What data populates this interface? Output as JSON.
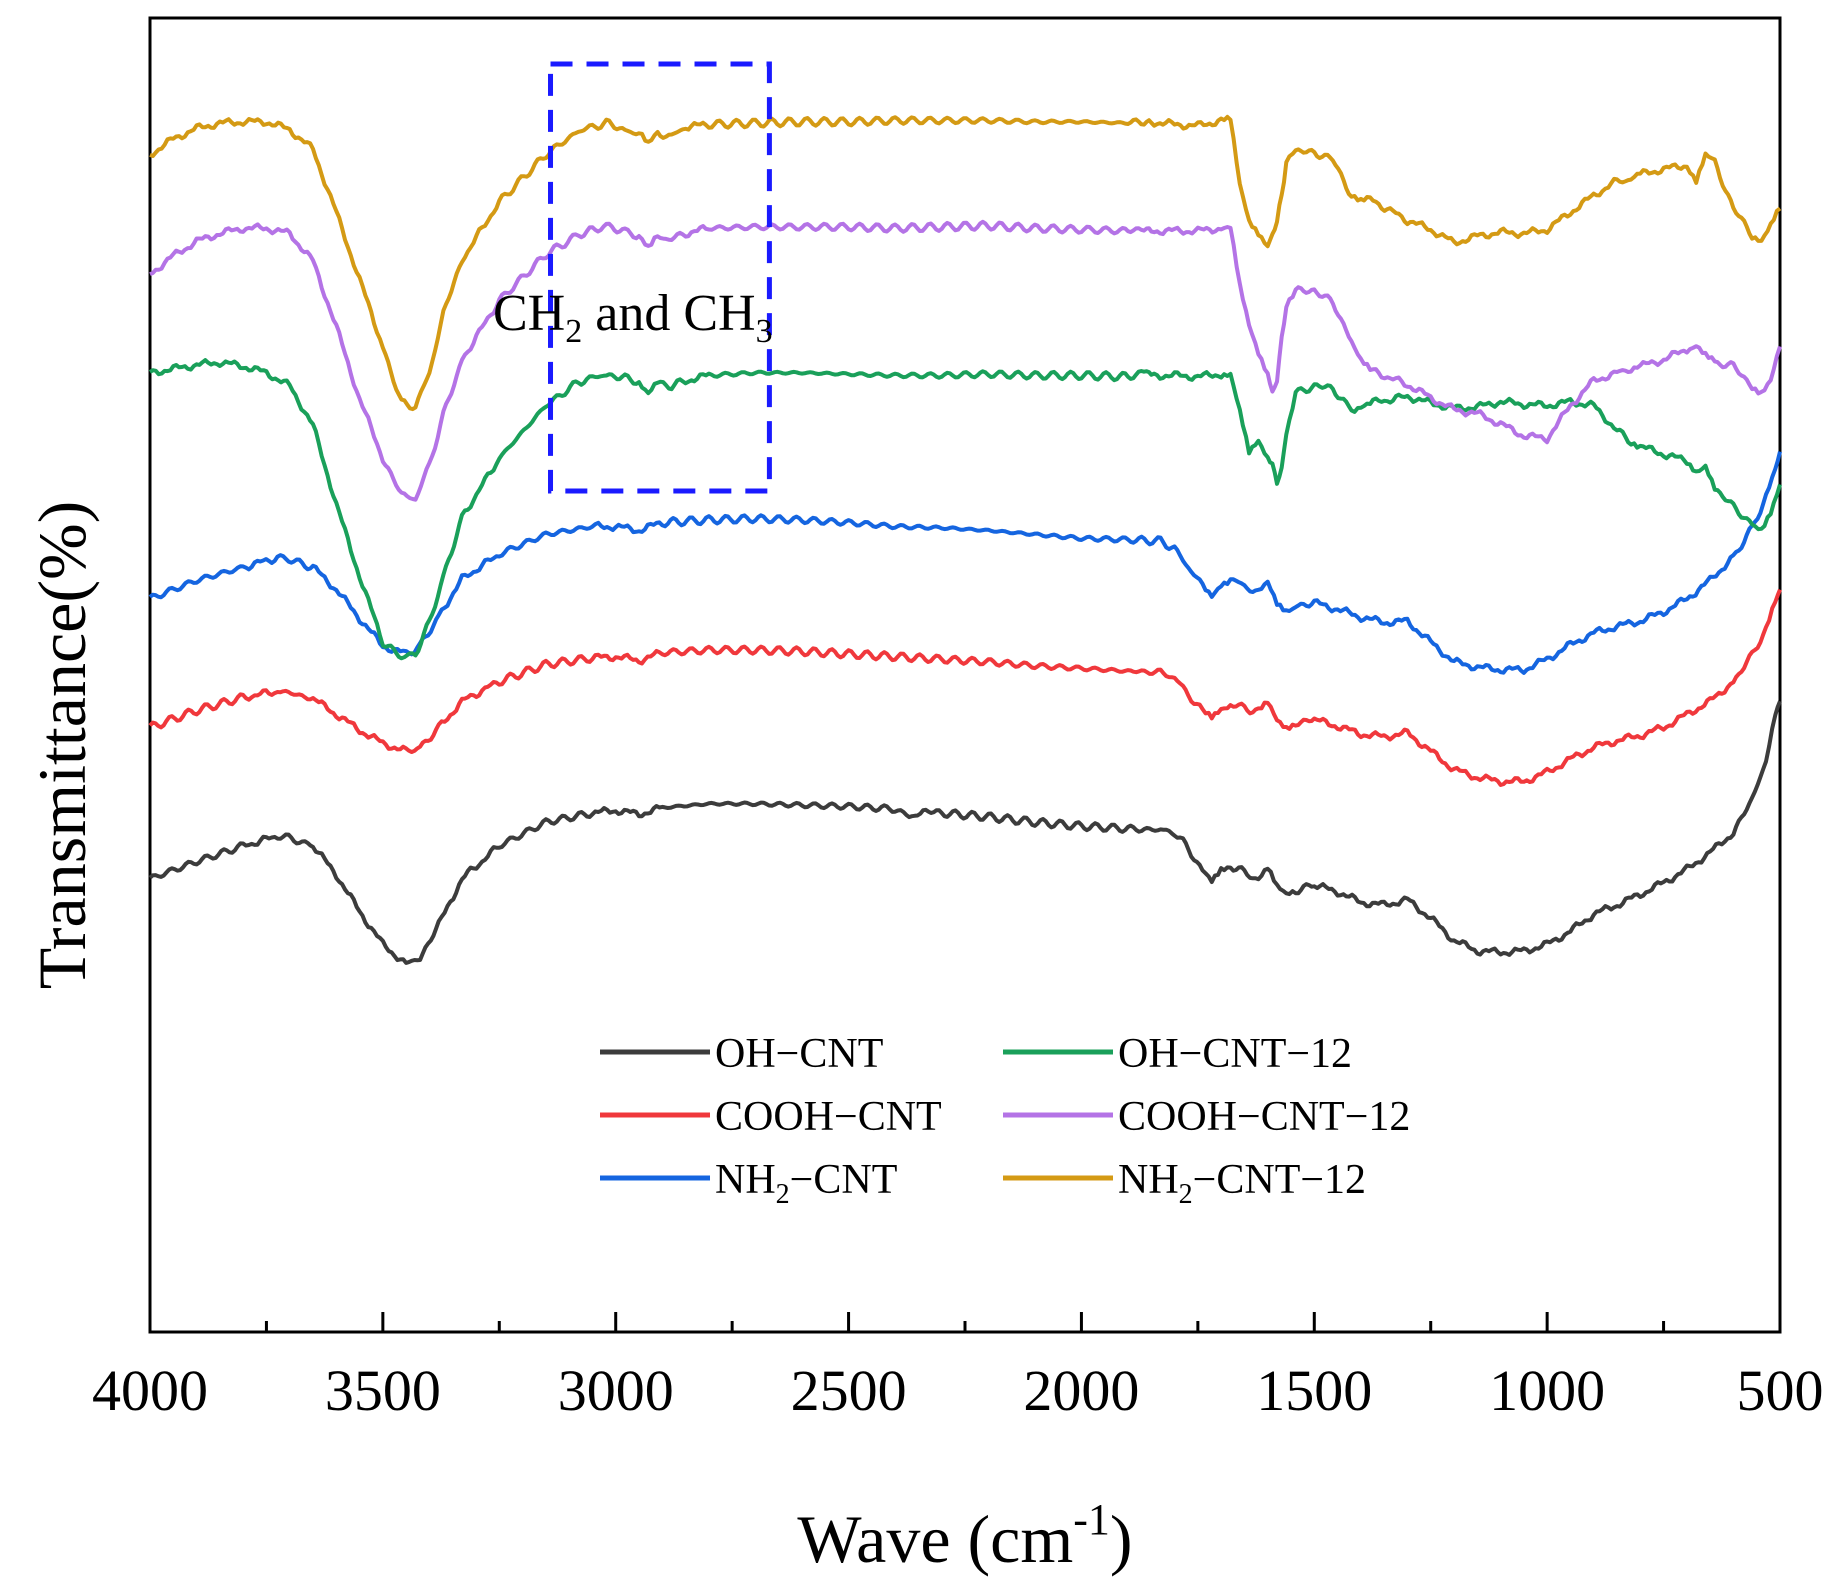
{
  "chart_data": {
    "type": "line",
    "title": "",
    "xlabel": "Wave (cm",
    "xlabel_sup": "-1",
    "xlabel_close": ")",
    "ylabel": "Transmittance(%)",
    "xlim": [
      4000,
      500
    ],
    "x_ticks": [
      4000,
      3500,
      3000,
      2500,
      2000,
      1500,
      1000,
      500
    ],
    "x_tick_labels": [
      "4000",
      "3500",
      "3000",
      "2500",
      "2000",
      "1500",
      "1000",
      "500"
    ],
    "y_ticks_shown": false,
    "ylim": [
      0,
      100
    ],
    "annotation": {
      "text_a": "CH",
      "sub_a": "2",
      "text_mid": " and CH",
      "sub_b": "3",
      "box_x_range": [
        3140,
        2670
      ],
      "box_y_range": [
        64,
        96.5
      ]
    },
    "legend": {
      "placement": "center-bottom",
      "entries": [
        {
          "label": "OH−CNT",
          "color": "#3c3c3c"
        },
        {
          "label": "OH−CNT−12",
          "color": "#1aa05a"
        },
        {
          "label": "COOH−CNT",
          "color": "#f0383c"
        },
        {
          "label": "COOH−CNT−12",
          "color": "#b473e6"
        },
        {
          "label_main": "NH",
          "label_sub": "2",
          "label_rest": "−CNT",
          "color": "#1565e0"
        },
        {
          "label_main": "NH",
          "label_sub": "2",
          "label_rest": "−CNT−12",
          "color": "#d49a14"
        }
      ]
    },
    "series": [
      {
        "name": "OH−CNT",
        "color": "#3c3c3c",
        "x": [
          4000,
          3900,
          3800,
          3720,
          3650,
          3600,
          3550,
          3500,
          3450,
          3420,
          3380,
          3330,
          3250,
          3150,
          3050,
          3000,
          2950,
          2900,
          2800,
          2700,
          2600,
          2500,
          2400,
          2370,
          2340,
          2300,
          2200,
          2100,
          2000,
          1900,
          1830,
          1800,
          1770,
          1740,
          1720,
          1700,
          1680,
          1650,
          1620,
          1600,
          1580,
          1560,
          1540,
          1500,
          1450,
          1400,
          1350,
          1300,
          1250,
          1200,
          1150,
          1100,
          1050,
          1000,
          950,
          900,
          850,
          800,
          750,
          700,
          650,
          600,
          560,
          530,
          510,
          500
        ],
        "y": [
          34.5,
          35.8,
          37,
          37.8,
          37,
          34.8,
          32,
          29.5,
          28,
          28.5,
          31,
          34.5,
          37,
          38.8,
          39.5,
          39.7,
          39.4,
          39.9,
          40.2,
          40.2,
          40.1,
          40,
          39.8,
          39.2,
          39.6,
          39.5,
          39.2,
          38.8,
          38.5,
          38.3,
          38.2,
          38,
          36.8,
          35,
          34.2,
          35.2,
          35.5,
          35,
          34.4,
          35.2,
          33.8,
          33.3,
          33.6,
          34,
          33.5,
          32.7,
          32.5,
          32.9,
          31.5,
          29.8,
          29,
          28.9,
          29,
          29.5,
          30.5,
          31.8,
          32.5,
          33.3,
          34.2,
          35.2,
          36.5,
          38,
          40.5,
          43.5,
          47,
          48
        ]
      },
      {
        "name": "COOH−CNT",
        "color": "#f0383c",
        "x": [
          4000,
          3900,
          3800,
          3720,
          3650,
          3600,
          3550,
          3500,
          3450,
          3420,
          3380,
          3330,
          3250,
          3150,
          3050,
          3000,
          2950,
          2900,
          2800,
          2700,
          2600,
          2500,
          2400,
          2300,
          2200,
          2100,
          2000,
          1900,
          1830,
          1800,
          1770,
          1740,
          1720,
          1700,
          1680,
          1650,
          1620,
          1600,
          1580,
          1560,
          1540,
          1500,
          1450,
          1400,
          1350,
          1300,
          1250,
          1200,
          1150,
          1100,
          1050,
          1000,
          950,
          900,
          850,
          800,
          750,
          700,
          650,
          600,
          560,
          530,
          510,
          500
        ],
        "y": [
          46,
          47.3,
          48.3,
          48.8,
          48.2,
          47,
          45.8,
          44.8,
          44.2,
          44.5,
          46,
          48,
          49.5,
          50.8,
          51.3,
          51.4,
          51.1,
          51.7,
          51.9,
          51.9,
          51.8,
          51.6,
          51.4,
          51.2,
          51,
          50.7,
          50.5,
          50.3,
          50.2,
          49.8,
          48.5,
          47.2,
          46.8,
          47.5,
          47.8,
          47.5,
          47.2,
          47.8,
          46.5,
          46,
          46.4,
          46.6,
          46.1,
          45.5,
          45.3,
          45.6,
          44.2,
          42.8,
          42.2,
          41.9,
          41.9,
          42.6,
          43.6,
          44.5,
          45,
          45.4,
          46,
          47,
          48,
          49.5,
          51.5,
          53.5,
          55.5,
          56.5
        ]
      },
      {
        "name": "NH2−CNT",
        "color": "#1565e0",
        "x": [
          4000,
          3900,
          3800,
          3720,
          3650,
          3600,
          3550,
          3500,
          3450,
          3420,
          3380,
          3330,
          3250,
          3150,
          3050,
          3000,
          2950,
          2900,
          2800,
          2700,
          2600,
          2500,
          2400,
          2300,
          2200,
          2100,
          2000,
          1900,
          1830,
          1800,
          1770,
          1740,
          1720,
          1700,
          1680,
          1650,
          1620,
          1600,
          1580,
          1560,
          1540,
          1500,
          1450,
          1400,
          1350,
          1300,
          1250,
          1200,
          1150,
          1100,
          1050,
          1000,
          950,
          900,
          850,
          800,
          750,
          700,
          650,
          600,
          560,
          530,
          510,
          500
        ],
        "y": [
          55.8,
          57.2,
          58.2,
          59,
          58.2,
          56.5,
          54.3,
          52.2,
          51.6,
          52.2,
          54.5,
          57.3,
          59.2,
          60.7,
          61.3,
          61.3,
          61,
          61.6,
          61.8,
          61.9,
          61.8,
          61.6,
          61.3,
          61.2,
          61,
          60.7,
          60.4,
          60.3,
          60.2,
          59.6,
          58.2,
          56.8,
          56.1,
          57,
          57.3,
          56.8,
          56.2,
          57,
          55.5,
          55,
          55.3,
          55.5,
          55,
          54.4,
          54,
          54.1,
          52.5,
          51,
          50.6,
          50.4,
          50.4,
          51.2,
          52.3,
          53.2,
          53.7,
          54.1,
          54.8,
          55.8,
          57.2,
          59,
          61.2,
          63.5,
          65.5,
          67
        ]
      },
      {
        "name": "OH−CNT−12",
        "color": "#1aa05a",
        "x": [
          4000,
          3950,
          3900,
          3850,
          3800,
          3750,
          3700,
          3650,
          3600,
          3550,
          3500,
          3460,
          3430,
          3400,
          3370,
          3330,
          3250,
          3150,
          3080,
          3020,
          2980,
          2950,
          2930,
          2910,
          2880,
          2850,
          2800,
          2700,
          2600,
          2500,
          2400,
          2300,
          2200,
          2100,
          2000,
          1900,
          1860,
          1850,
          1800,
          1750,
          1700,
          1680,
          1660,
          1640,
          1620,
          1600,
          1590,
          1580,
          1570,
          1560,
          1540,
          1500,
          1460,
          1420,
          1400,
          1380,
          1300,
          1250,
          1200,
          1150,
          1100,
          1050,
          1000,
          950,
          900,
          850,
          820,
          800,
          750,
          700,
          680,
          660,
          640,
          600,
          560,
          540,
          520,
          500
        ],
        "y": [
          73,
          73.3,
          73.6,
          73.8,
          73.5,
          73,
          72,
          69,
          63,
          57.5,
          52.5,
          51.3,
          51.6,
          54,
          57.5,
          62,
          66.5,
          70.5,
          72.3,
          72.9,
          72.6,
          72.3,
          71.4,
          72.2,
          72,
          72.4,
          72.8,
          73,
          73,
          72.9,
          72.8,
          72.8,
          72.9,
          72.8,
          72.8,
          72.7,
          73.2,
          72.8,
          72.8,
          72.7,
          72.9,
          72.9,
          70,
          66.8,
          67.7,
          66.5,
          66,
          64.8,
          65.5,
          68.5,
          71.5,
          72,
          71.8,
          70.2,
          70.5,
          70.7,
          71.2,
          70.7,
          70.3,
          70.4,
          70.8,
          70.6,
          70.5,
          70.8,
          70.5,
          68.6,
          67.8,
          67.4,
          66.8,
          66.3,
          65.6,
          66,
          64.2,
          62.8,
          61.5,
          61.2,
          62.5,
          64.5
        ]
      },
      {
        "name": "COOH−CNT−12",
        "color": "#b473e6",
        "x": [
          4000,
          3950,
          3900,
          3850,
          3800,
          3750,
          3700,
          3650,
          3600,
          3550,
          3500,
          3460,
          3430,
          3400,
          3370,
          3330,
          3250,
          3150,
          3080,
          3020,
          2980,
          2950,
          2930,
          2910,
          2880,
          2850,
          2800,
          2700,
          2600,
          2500,
          2400,
          2300,
          2200,
          2100,
          2000,
          1900,
          1860,
          1850,
          1800,
          1750,
          1700,
          1680,
          1660,
          1640,
          1620,
          1600,
          1590,
          1580,
          1570,
          1560,
          1540,
          1500,
          1460,
          1420,
          1400,
          1380,
          1300,
          1250,
          1200,
          1150,
          1100,
          1050,
          1000,
          950,
          900,
          850,
          820,
          800,
          750,
          700,
          680,
          660,
          640,
          600,
          560,
          540,
          520,
          500
        ],
        "y": [
          80.5,
          81.9,
          83,
          83.6,
          84,
          84,
          83.6,
          81.5,
          76.5,
          71,
          66.5,
          63.7,
          63.4,
          66,
          69.8,
          74,
          78.5,
          82,
          83.5,
          84.2,
          83.8,
          83.4,
          82.4,
          83.3,
          83.2,
          83.6,
          84,
          84.1,
          84.1,
          84.1,
          84,
          84.1,
          84.2,
          84,
          83.9,
          83.8,
          84.1,
          83.8,
          83.8,
          83.8,
          84,
          84,
          79.5,
          76.5,
          74.5,
          73,
          71.5,
          72.5,
          75.5,
          78.2,
          79.2,
          79.3,
          78.3,
          75.5,
          74,
          73.2,
          72.1,
          71.1,
          70.2,
          69.9,
          69.1,
          68.2,
          68,
          70.5,
          72.4,
          73,
          73.3,
          73.5,
          74,
          74.8,
          75.2,
          74.4,
          73.8,
          73.5,
          72,
          71.6,
          72.5,
          75
        ]
      },
      {
        "name": "NH2−CNT−12",
        "color": "#d49a14",
        "x": [
          4000,
          3950,
          3900,
          3850,
          3800,
          3750,
          3700,
          3650,
          3600,
          3550,
          3500,
          3460,
          3430,
          3400,
          3370,
          3330,
          3250,
          3150,
          3080,
          3020,
          2980,
          2950,
          2930,
          2910,
          2880,
          2850,
          2800,
          2700,
          2600,
          2500,
          2400,
          2300,
          2200,
          2100,
          2000,
          1900,
          1860,
          1850,
          1800,
          1750,
          1700,
          1680,
          1660,
          1640,
          1620,
          1600,
          1590,
          1580,
          1570,
          1560,
          1540,
          1500,
          1460,
          1420,
          1400,
          1380,
          1300,
          1250,
          1200,
          1150,
          1100,
          1050,
          1000,
          950,
          900,
          850,
          820,
          800,
          750,
          700,
          680,
          660,
          640,
          600,
          560,
          540,
          520,
          500
        ],
        "y": [
          89.6,
          90.8,
          91.6,
          92,
          92.1,
          92.1,
          91.5,
          90,
          85.2,
          80.1,
          75,
          70.7,
          70.4,
          73,
          77.5,
          81.6,
          86,
          89.6,
          91.4,
          92,
          91.5,
          91.2,
          90.3,
          91.2,
          91,
          91.7,
          91.9,
          92,
          92.1,
          92.1,
          92.2,
          92.2,
          92.2,
          92.1,
          92.1,
          92,
          92.2,
          92.1,
          91.9,
          91.8,
          92.2,
          92.2,
          87.2,
          84.5,
          83.7,
          82.8,
          83.5,
          84.5,
          86.5,
          89.1,
          89.8,
          89.8,
          89.2,
          86.5,
          86,
          86.2,
          84.6,
          83.9,
          82.9,
          83.4,
          83.7,
          83.6,
          83.9,
          85.2,
          86.5,
          87.6,
          87.7,
          88.1,
          88.5,
          88.8,
          87.6,
          89.5,
          89,
          85.5,
          83.5,
          83.1,
          84.2,
          85.5
        ]
      }
    ]
  }
}
